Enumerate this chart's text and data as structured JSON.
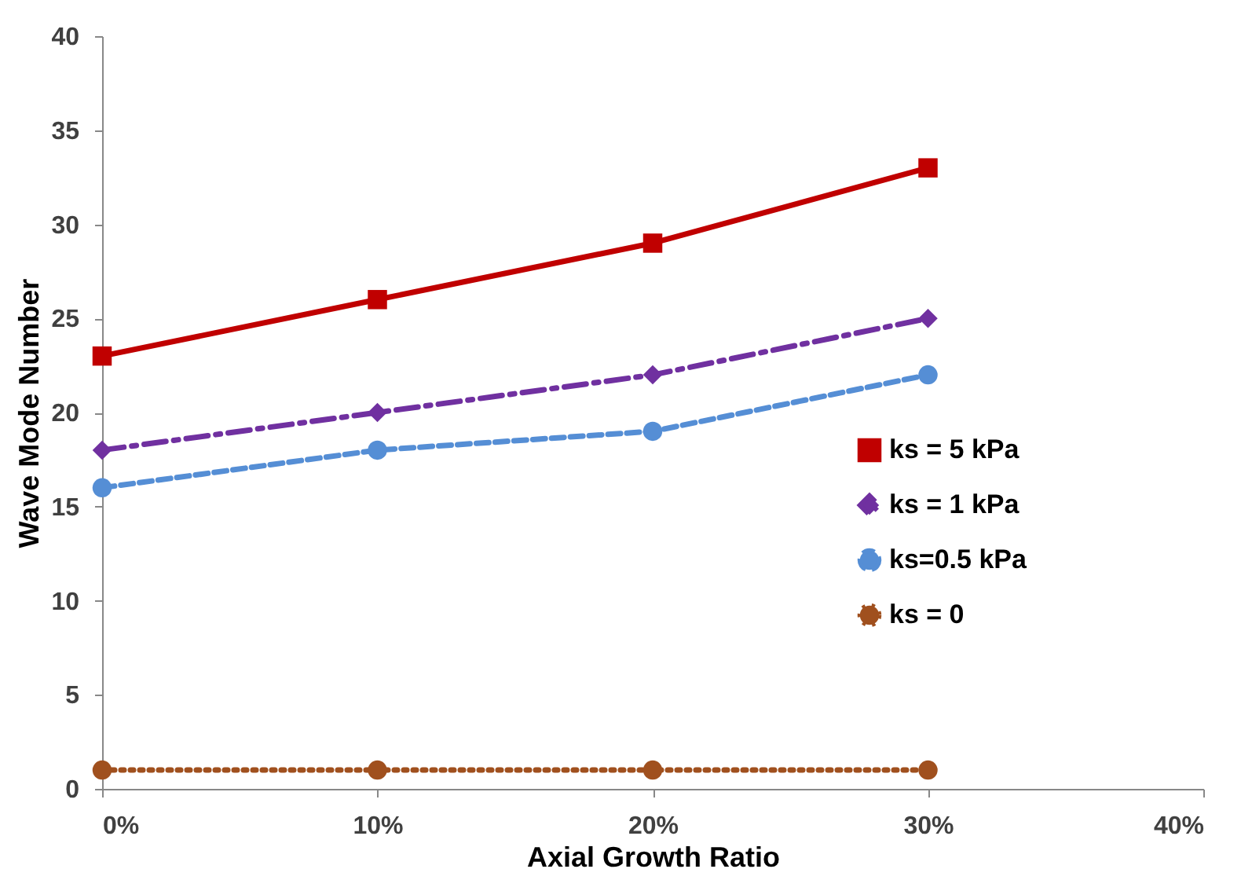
{
  "chart_data": {
    "type": "line",
    "xlabel": "Axial Growth Ratio",
    "ylabel": "Wave Mode Number",
    "x": [
      0,
      10,
      20,
      30
    ],
    "xlim": [
      0,
      40
    ],
    "xticks": [
      {
        "value": 0,
        "label": "0%"
      },
      {
        "value": 10,
        "label": "10%"
      },
      {
        "value": 20,
        "label": "20%"
      },
      {
        "value": 30,
        "label": "30%"
      },
      {
        "value": 40,
        "label": "40%"
      }
    ],
    "ylim": [
      0,
      40
    ],
    "yticks": [
      0,
      5,
      10,
      15,
      20,
      25,
      30,
      35,
      40
    ],
    "grid": false,
    "legend": "right",
    "series": [
      {
        "name": "ks = 5 kPa",
        "color": "#c00000",
        "values": [
          23,
          26,
          29,
          33
        ],
        "marker": "square",
        "line_style": "solid"
      },
      {
        "name": "ks = 1 kPa",
        "color": "#7030a0",
        "values": [
          18,
          20,
          22,
          25
        ],
        "marker": "diamond",
        "line_style": "dashdot"
      },
      {
        "name": "ks=0.5 kPa",
        "color": "#558ed5",
        "values": [
          16,
          18,
          19,
          22
        ],
        "marker": "circle",
        "line_style": "dashed"
      },
      {
        "name": "ks = 0",
        "color": "#a0501e",
        "values": [
          1,
          1,
          1,
          1
        ],
        "marker": "circle",
        "line_style": "dotted"
      }
    ]
  }
}
